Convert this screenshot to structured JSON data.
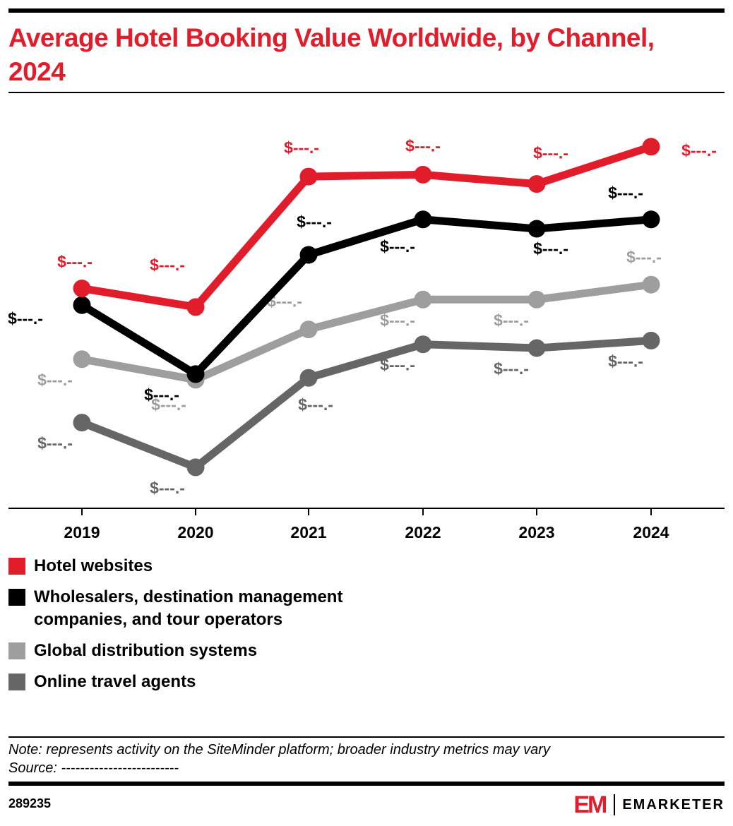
{
  "header": {
    "title": "Average Hotel Booking Value Worldwide, by Channel, 2024"
  },
  "colors": {
    "hotel_websites": "#e11d2b",
    "wholesalers": "#000000",
    "gds": "#9e9e9e",
    "ota": "#666666"
  },
  "chart_data": {
    "type": "line",
    "x": [
      "2019",
      "2020",
      "2021",
      "2022",
      "2023",
      "2024"
    ],
    "ylim": [
      0,
      100
    ],
    "grid": false,
    "legend_position": "bottom-left",
    "series": [
      {
        "name": "Hotel websites",
        "color": "#e11d2b",
        "values": [
          59,
          54,
          89,
          89.5,
          87,
          97
        ],
        "labels": [
          "$---.-",
          "$---.-",
          "$---.-",
          "$---.-",
          "$---.-",
          "$---.-"
        ]
      },
      {
        "name": "Wholesalers, destination management companies, and tour operators",
        "color": "#000000",
        "values": [
          54.5,
          36,
          68,
          77.5,
          75,
          77.5
        ],
        "labels": [
          "$---.-",
          "$---.-",
          "$---.-",
          "$---.-",
          "$---.-",
          "$---.-"
        ]
      },
      {
        "name": "Global distribution systems",
        "color": "#9e9e9e",
        "values": [
          40,
          34.5,
          48,
          56,
          56,
          60
        ],
        "labels": [
          "$---.-",
          "$---.-",
          "$---.-",
          "$---.-",
          "$---.-",
          "$---.-"
        ]
      },
      {
        "name": "Online travel agents",
        "color": "#666666",
        "values": [
          23,
          11,
          35,
          44,
          43,
          45
        ],
        "labels": [
          "$---.-",
          "$---.-",
          "$---.-",
          "$---.-",
          "$---.-",
          "$---.-"
        ]
      }
    ]
  },
  "legend": {
    "items": [
      {
        "label": "Hotel websites",
        "color": "#e11d2b"
      },
      {
        "label": "Wholesalers, destination management companies, and tour operators",
        "color": "#000000"
      },
      {
        "label": "Global distribution systems",
        "color": "#9e9e9e"
      },
      {
        "label": "Online travel agents",
        "color": "#666666"
      }
    ]
  },
  "footer": {
    "note": "Note: represents activity on the SiteMinder platform; broader industry metrics may vary",
    "source": "Source: -------------------------",
    "chart_id": "289235",
    "brand_mark": "EM",
    "brand_name": "EMARKETER"
  }
}
